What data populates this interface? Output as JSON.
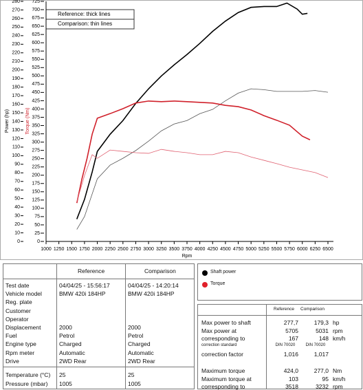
{
  "chart_data": {
    "type": "line",
    "ylabel": "Power (hp)",
    "y2label": "Torque (Nm)",
    "xlabel": "Rpm",
    "annotations": [
      "Reference: thick lines",
      "Comparison: thin lines"
    ],
    "xlim": [
      1000,
      6500
    ],
    "xticks": [
      1000,
      1250,
      1500,
      1750,
      2000,
      2250,
      2500,
      2750,
      3000,
      3250,
      3500,
      3750,
      4000,
      4250,
      4500,
      4750,
      5000,
      5250,
      5500,
      5750,
      6000,
      6250,
      6500
    ],
    "ylim": [
      0,
      280
    ],
    "yticks": [
      0,
      10,
      20,
      30,
      40,
      50,
      60,
      70,
      80,
      90,
      100,
      110,
      120,
      130,
      140,
      150,
      160,
      170,
      180,
      190,
      200,
      210,
      220,
      230,
      240,
      250,
      260,
      270,
      280
    ],
    "y2lim": [
      0,
      725
    ],
    "y2ticks": [
      0,
      25,
      50,
      75,
      100,
      125,
      150,
      175,
      200,
      225,
      250,
      275,
      300,
      325,
      350,
      375,
      400,
      425,
      450,
      475,
      500,
      525,
      550,
      575,
      600,
      625,
      650,
      675,
      700,
      725
    ],
    "grid": false,
    "series": [
      {
        "color": "#000000",
        "width": 1.6,
        "x": [
          1600,
          1750,
          1900,
          2000,
          2250,
          2500,
          2750,
          3000,
          3250,
          3500,
          3750,
          4000,
          4250,
          4500,
          4750,
          5000,
          5250,
          5500,
          5700,
          5900,
          6000,
          6100
        ],
        "values": [
          26,
          49,
          81,
          105,
          125,
          141,
          161,
          178,
          193,
          206,
          218,
          231,
          245,
          257,
          267,
          273,
          274,
          274,
          278,
          271,
          265,
          266
        ]
      },
      {
        "color": "#555555",
        "width": 0.8,
        "x": [
          1600,
          1750,
          2000,
          2250,
          2500,
          2750,
          3000,
          3250,
          3500,
          3750,
          4000,
          4250,
          4500,
          4750,
          5000,
          5250,
          5500,
          5750,
          6000,
          6250,
          6500
        ],
        "values": [
          14,
          29,
          73,
          89,
          97,
          106,
          117,
          129,
          137,
          141,
          149,
          154,
          164,
          173,
          178,
          177,
          175,
          175,
          175,
          176,
          174
        ]
      },
      {
        "color": "#d0202a",
        "width": 1.6,
        "axis": "y2",
        "x": [
          1600,
          1700,
          1800,
          1900,
          2000,
          2250,
          2500,
          2750,
          3000,
          3250,
          3500,
          3750,
          4000,
          4250,
          4500,
          4750,
          5000,
          5250,
          5500,
          5750,
          6000,
          6150
        ],
        "values": [
          116,
          189,
          251,
          324,
          372,
          386,
          401,
          418,
          424,
          422,
          424,
          422,
          420,
          418,
          411,
          407,
          397,
          380,
          366,
          351,
          318,
          307
        ]
      },
      {
        "color": "#e06070",
        "width": 0.8,
        "axis": "y2",
        "x": [
          1600,
          1750,
          1900,
          2000,
          2250,
          2500,
          2750,
          3000,
          3250,
          3500,
          3750,
          4000,
          4250,
          4500,
          4750,
          5000,
          5250,
          5500,
          5750,
          6000,
          6250,
          6500
        ],
        "values": [
          120,
          199,
          262,
          251,
          276,
          272,
          268,
          266,
          278,
          272,
          268,
          262,
          262,
          272,
          268,
          255,
          245,
          235,
          224,
          216,
          208,
          193
        ]
      }
    ],
    "legend_items": [
      {
        "label": "Shaft power",
        "color": "#000000"
      },
      {
        "label": "Torque",
        "color": "#e0202a"
      }
    ]
  },
  "vehicle_table": {
    "header": [
      "Reference",
      "Comparison"
    ],
    "rows": [
      [
        "Test date",
        "04/04/25 - 15:56:17",
        "04/04/25 - 14:20:14"
      ],
      [
        "Vehicle model",
        "BMW 420i 184HP",
        "BMW 420i 184HP"
      ],
      [
        "Reg. plate"
      ],
      [
        "Customer"
      ],
      [
        "Operator"
      ],
      [
        "Displacement",
        "2000",
        "2000"
      ],
      [
        "Fuel",
        "Petrol",
        "Petrol"
      ],
      [
        "Engine type",
        "Charged",
        "Charged"
      ],
      [
        "Rpm meter",
        "Automatic",
        "Automatic"
      ],
      [
        "Drive",
        "2WD Rear",
        "2WD Rear"
      ]
    ],
    "env_rows": [
      [
        "Temperature (°C)",
        "25",
        "25"
      ],
      [
        "Pressure (mbar)",
        "1005",
        "1005"
      ]
    ]
  },
  "results_table": {
    "header": [
      "Reference",
      "Comparison"
    ],
    "rows": [
      [
        "Max power to shaft",
        "277,7",
        "179,3",
        "hp"
      ],
      [
        "Max power at",
        "5705",
        "5031",
        "rpm"
      ],
      [
        "corresponding to",
        "167",
        "148",
        "km/h"
      ],
      [
        "correction standard",
        "DIN 70020",
        "DIN 70020"
      ],
      [
        "correction factor",
        "1,016",
        "1,017"
      ]
    ],
    "torque_rows": [
      [
        "Maximum torque",
        "424,0",
        "277,0",
        "Nm"
      ],
      [
        "Maximum torque at",
        "103",
        "95",
        "km/h"
      ],
      [
        "corresponding to",
        "3518",
        "3232",
        "rpm"
      ]
    ]
  }
}
